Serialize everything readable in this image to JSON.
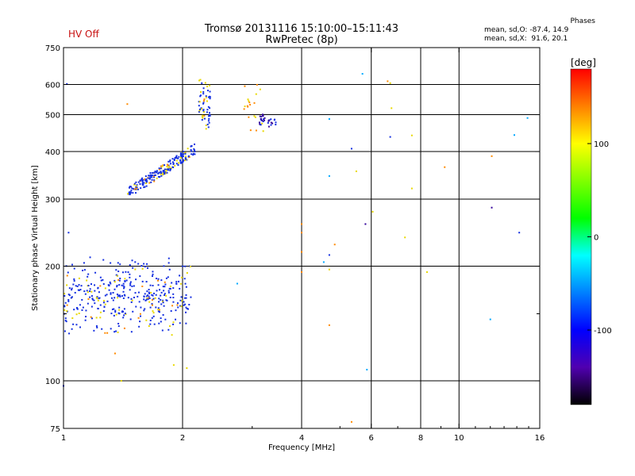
{
  "header": {
    "title": "Tromsø 20131116 15:10:00–15:11:43",
    "subtitle": "RwPretec (8p)",
    "status": "HV Off",
    "phases": {
      "title": "Phases",
      "row_o": "mean, sd,O: -87.4, 14.9",
      "row_x": "mean, sd,X:  91.6, 20.1"
    }
  },
  "colors": {
    "status": "#c81010",
    "grid": "#000000",
    "colorbar_stops": [
      "#ff0000",
      "#ff8000",
      "#ffff00",
      "#80ff00",
      "#00ff00",
      "#00ffff",
      "#0080ff",
      "#0000ff",
      "#5000b0",
      "#000000"
    ]
  },
  "chart_data": {
    "type": "scatter",
    "x_scale": "log",
    "y_scale": "log",
    "xlabel": "Frequency [MHz]",
    "ylabel": "Stationary phase Virtual Height [km]",
    "xlim": [
      1,
      16
    ],
    "ylim": [
      75,
      750
    ],
    "x_ticks": [
      1,
      2,
      4,
      6,
      8,
      10,
      16
    ],
    "x_grid": [
      2,
      4,
      6,
      8,
      10
    ],
    "y_ticks": [
      75,
      100,
      200,
      300,
      400,
      500,
      600,
      750
    ],
    "y_grid": [
      100,
      200,
      300,
      400,
      500,
      600
    ],
    "grid": true,
    "colorbar": {
      "label": "[deg]",
      "range": [
        -180,
        180
      ],
      "ticks": [
        100,
        0,
        -100
      ]
    },
    "clusters": [
      {
        "x_range": [
          1.0,
          2.1
        ],
        "y_range": [
          130,
          215
        ],
        "phase_mix": "mostly blue (-100) with some yellow/orange (+100)",
        "count": 400
      },
      {
        "x_range": [
          1.45,
          2.15
        ],
        "y_range": [
          300,
          420
        ],
        "phase_mix": "mostly blue with some yellow",
        "count": 220
      },
      {
        "x_range": [
          2.2,
          2.35
        ],
        "y_range": [
          450,
          640
        ],
        "phase_mix": "blue with yellow",
        "count": 60
      },
      {
        "x_range": [
          3.1,
          3.45
        ],
        "y_range": [
          460,
          510
        ],
        "phase_mix": "purple/dark blue",
        "count": 30
      },
      {
        "x_range": [
          2.8,
          3.2
        ],
        "y_range": [
          430,
          640
        ],
        "phase_mix": "yellow/orange",
        "count": 20
      }
    ],
    "points": [
      {
        "x": 1.02,
        "y": 602,
        "phase": -100
      },
      {
        "x": 1.45,
        "y": 533,
        "phase": 140
      },
      {
        "x": 1.35,
        "y": 118,
        "phase": 140
      },
      {
        "x": 1.4,
        "y": 100,
        "phase": 90
      },
      {
        "x": 1.9,
        "y": 110,
        "phase": 100
      },
      {
        "x": 2.05,
        "y": 108,
        "phase": 100
      },
      {
        "x": 1.03,
        "y": 245,
        "phase": -120
      },
      {
        "x": 2.75,
        "y": 180,
        "phase": -80
      },
      {
        "x": 4.0,
        "y": 258,
        "phase": 150
      },
      {
        "x": 4.0,
        "y": 245,
        "phase": 150
      },
      {
        "x": 4.0,
        "y": 218,
        "phase": 150
      },
      {
        "x": 4.0,
        "y": 193,
        "phase": 150
      },
      {
        "x": 4.55,
        "y": 205,
        "phase": -70
      },
      {
        "x": 4.7,
        "y": 214,
        "phase": -120
      },
      {
        "x": 4.85,
        "y": 228,
        "phase": 140
      },
      {
        "x": 4.7,
        "y": 196,
        "phase": 100
      },
      {
        "x": 4.7,
        "y": 140,
        "phase": 150
      },
      {
        "x": 4.7,
        "y": 487,
        "phase": -50
      },
      {
        "x": 4.7,
        "y": 345,
        "phase": -50
      },
      {
        "x": 5.35,
        "y": 407,
        "phase": -120
      },
      {
        "x": 5.5,
        "y": 355,
        "phase": 100
      },
      {
        "x": 5.8,
        "y": 258,
        "phase": -160
      },
      {
        "x": 6.05,
        "y": 278,
        "phase": 100
      },
      {
        "x": 5.85,
        "y": 107,
        "phase": -50
      },
      {
        "x": 5.35,
        "y": 78,
        "phase": 150
      },
      {
        "x": 5.7,
        "y": 640,
        "phase": -40
      },
      {
        "x": 6.6,
        "y": 612,
        "phase": 150
      },
      {
        "x": 6.7,
        "y": 605,
        "phase": 120
      },
      {
        "x": 6.75,
        "y": 520,
        "phase": 100
      },
      {
        "x": 6.7,
        "y": 437,
        "phase": -120
      },
      {
        "x": 7.6,
        "y": 441,
        "phase": 100
      },
      {
        "x": 7.6,
        "y": 320,
        "phase": 110
      },
      {
        "x": 7.3,
        "y": 238,
        "phase": 120
      },
      {
        "x": 8.3,
        "y": 193,
        "phase": 100
      },
      {
        "x": 9.2,
        "y": 364,
        "phase": 140
      },
      {
        "x": 12.1,
        "y": 389,
        "phase": 150
      },
      {
        "x": 12.1,
        "y": 285,
        "phase": -160
      },
      {
        "x": 12.0,
        "y": 145,
        "phase": -40
      },
      {
        "x": 13.8,
        "y": 442,
        "phase": -50
      },
      {
        "x": 14.2,
        "y": 245,
        "phase": -110
      },
      {
        "x": 14.9,
        "y": 490,
        "phase": -50
      },
      {
        "x": 1.0,
        "y": 97,
        "phase": -100
      }
    ]
  }
}
